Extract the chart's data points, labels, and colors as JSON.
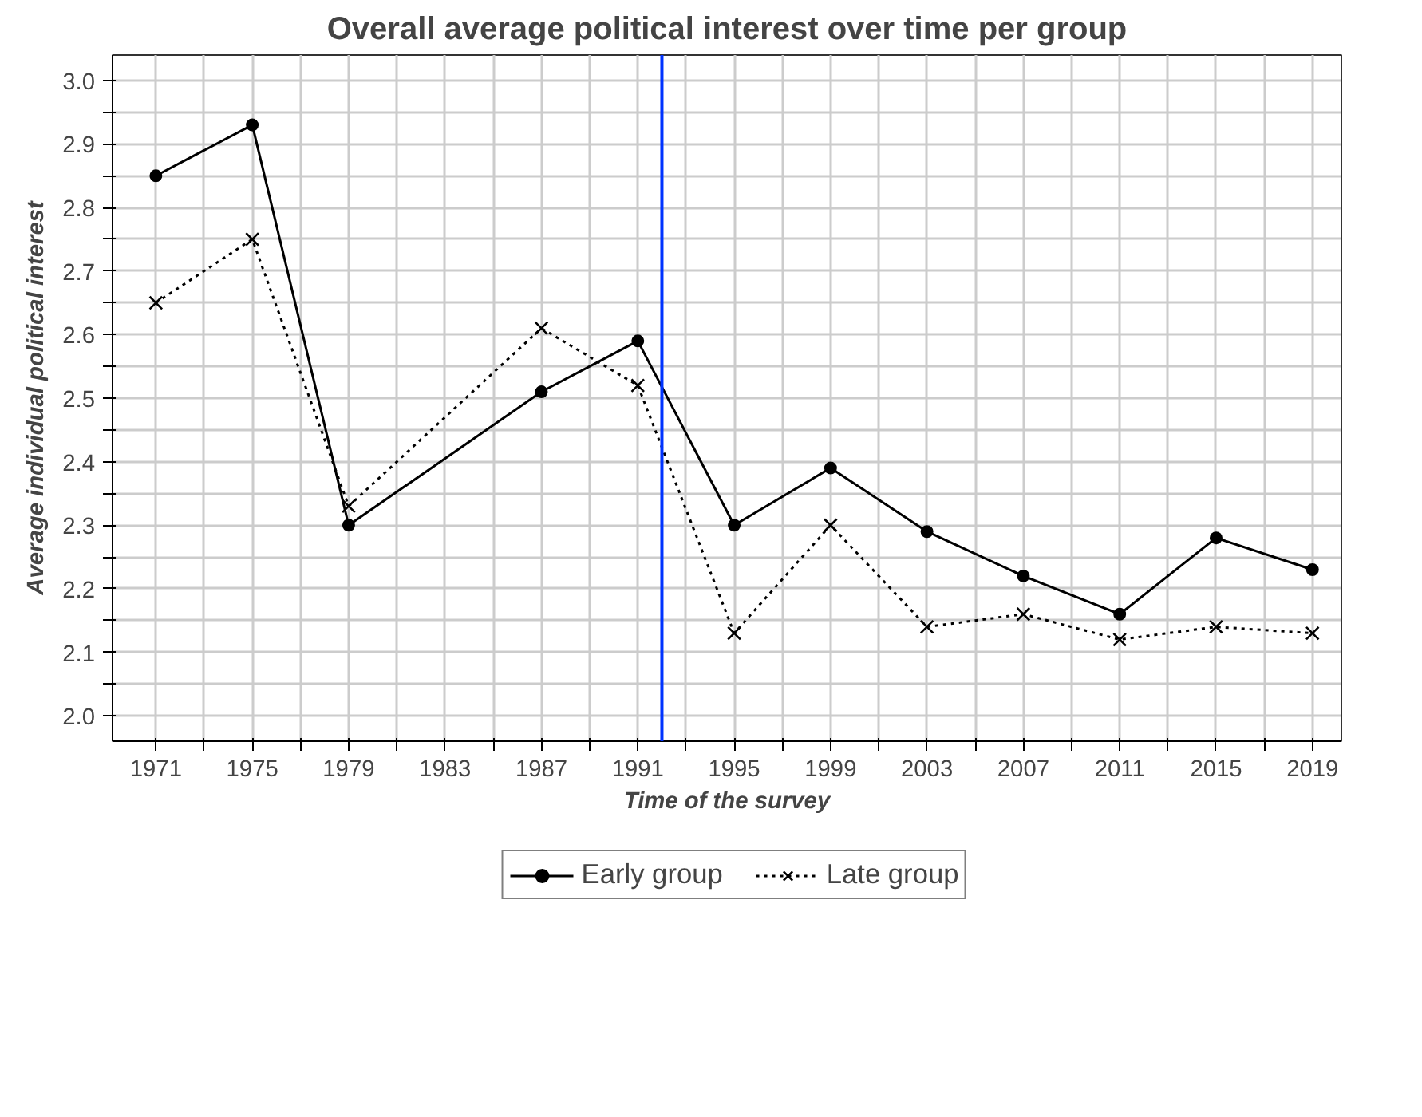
{
  "chart_data": {
    "type": "line",
    "title": "Overall average political interest over time per group",
    "xlabel": "Time of the survey",
    "ylabel": "Average individual political interest",
    "x": [
      1971,
      1975,
      1979,
      1987,
      1991,
      1995,
      1999,
      2003,
      2007,
      2011,
      2015,
      2019
    ],
    "series": [
      {
        "name": "Early group",
        "color": "#000000",
        "marker": "circle",
        "line_style": "solid",
        "values": [
          2.85,
          2.93,
          2.3,
          2.51,
          2.59,
          2.3,
          2.39,
          2.29,
          2.22,
          2.16,
          2.28,
          2.23
        ]
      },
      {
        "name": "Late group",
        "color": "#000000",
        "marker": "cross",
        "line_style": "dotted",
        "values": [
          2.65,
          2.75,
          2.33,
          2.61,
          2.52,
          2.13,
          2.3,
          2.14,
          2.16,
          2.12,
          2.14,
          2.13
        ]
      }
    ],
    "xlim": [
      1969.2,
      2020.2
    ],
    "ylim": [
      1.96,
      3.04
    ],
    "xticks": [
      1971,
      {
        "value": 1973,
        "label": null
      },
      1975,
      {
        "value": 1977,
        "label": null
      },
      1979,
      {
        "value": 1981,
        "label": null
      },
      1983,
      {
        "value": 1985,
        "label": null
      },
      1987,
      {
        "value": 1989,
        "label": null
      },
      1991,
      {
        "value": 1993,
        "label": null
      },
      1995,
      {
        "value": 1997,
        "label": null
      },
      1999,
      {
        "value": 2001,
        "label": null
      },
      2003,
      {
        "value": 2005,
        "label": null
      },
      2007,
      {
        "value": 2009,
        "label": null
      },
      2011,
      {
        "value": 2013,
        "label": null
      },
      2015,
      {
        "value": 2017,
        "label": null
      },
      2019
    ],
    "yticks": [
      {
        "value": 2.0,
        "label": "2.0"
      },
      {
        "value": 2.05,
        "label": null
      },
      2.1,
      {
        "value": 2.15,
        "label": null
      },
      2.2,
      {
        "value": 2.25,
        "label": null
      },
      2.3,
      {
        "value": 2.35,
        "label": null
      },
      2.4,
      {
        "value": 2.45,
        "label": null
      },
      2.5,
      {
        "value": 2.55,
        "label": null
      },
      2.6,
      {
        "value": 2.65,
        "label": null
      },
      2.7,
      {
        "value": 2.75,
        "label": null
      },
      2.8,
      {
        "value": 2.85,
        "label": null
      },
      2.9,
      {
        "value": 2.95,
        "label": null
      },
      {
        "value": 3.0,
        "label": "3.0"
      }
    ],
    "ref_lines": [
      {
        "axis": "x",
        "value": 1992,
        "color": "#0033ff",
        "line_style": "solid"
      }
    ],
    "grid": true,
    "legend": "bottom"
  }
}
